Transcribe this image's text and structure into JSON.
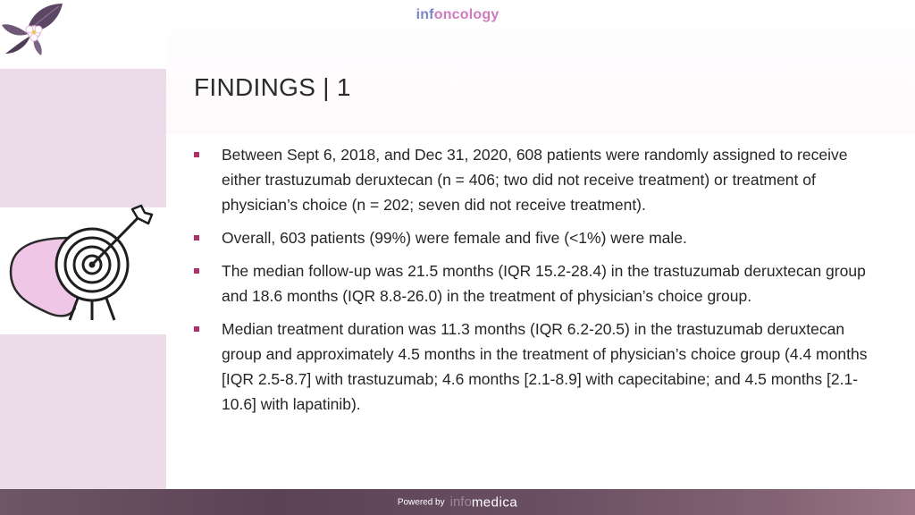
{
  "brand": {
    "part1": "inf",
    "part2": "oncology"
  },
  "slide": {
    "title": "FINDINGS | 1"
  },
  "bullets": [
    "Between Sept 6, 2018, and Dec 31, 2020, 608 patients were randomly assigned to receive either trastuzumab deruxtecan (n = 406; two did not receive treatment) or treatment of physician’s choice (n = 202; seven did not receive treatment).",
    "Overall, 603 patients (99%) were female and five (<1%) were male.",
    "The median follow-up was 21.5 months (IQR 15.2-28.4) in the trastuzumab deruxtecan group and 18.6 months (IQR 8.8-26.0) in the treatment of physician’s choice group.",
    "Median treatment duration was 11.3 months (IQR 6.2-20.5) in the trastuzumab deruxtecan group and approximately 4.5 months in the treatment of physician’s choice group (4.4 months [IQR 2.5-8.7] with trastuzumab; 4.6 months [2.1-8.9] with capecitabine; and 4.5 months [2.1-10.6] with lapatinib)."
  ],
  "footer": {
    "powered_by": "Powered by",
    "info": "info",
    "medica": "medica"
  },
  "icons": {
    "logo": "flower-leaf-logo-icon",
    "illustration": "target-arrow-icon"
  },
  "colors": {
    "panel": "#ecdcea",
    "bullet": "#b0306a",
    "accent_pink": "#d07ac0",
    "accent_blue": "#7a86c6",
    "footer": "#5a4355"
  }
}
